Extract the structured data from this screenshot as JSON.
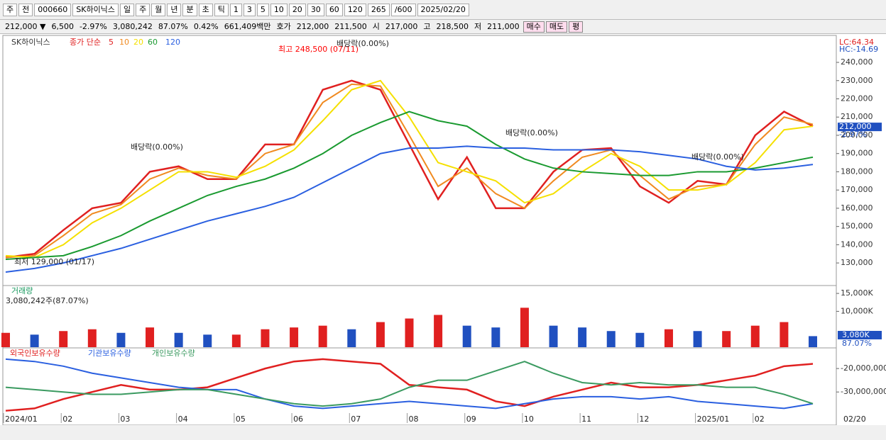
{
  "toolbar": {
    "items": [
      "주",
      "전",
      "000660",
      "SK하이닉스",
      "일",
      "주",
      "월",
      "년",
      "분",
      "초",
      "틱",
      "1",
      "3",
      "5",
      "10",
      "20",
      "30",
      "60",
      "120",
      "265",
      "/600",
      "2025/02/20"
    ]
  },
  "infobar": {
    "items": [
      "212,000 ▼",
      "6,500",
      "-2.97%",
      "3,080,242",
      "87.07%",
      "0.42%",
      "661,409백만",
      "호가",
      "212,000",
      "211,500",
      "시",
      "217,000",
      "고",
      "218,500",
      "저",
      "211,000"
    ],
    "buttons": [
      "매수",
      "매도",
      "평"
    ]
  },
  "chart_data": [
    {
      "type": "line",
      "name": "SK하이닉스",
      "subtitle": "종가 단순",
      "categories": [
        "2024/01",
        null,
        "02",
        null,
        "03",
        null,
        "04",
        null,
        "05",
        null,
        "06",
        null,
        "07",
        null,
        "08",
        null,
        "09",
        null,
        "10",
        null,
        "11",
        null,
        "12",
        null,
        "2025/01",
        null,
        "02",
        null,
        null
      ],
      "series": [
        {
          "name": "5",
          "color": "#e02020",
          "values": [
            133000,
            135000,
            148000,
            160000,
            163000,
            180000,
            183000,
            176000,
            176000,
            195000,
            195000,
            225000,
            230000,
            225000,
            195000,
            165000,
            188000,
            160000,
            160000,
            180000,
            192000,
            193000,
            172000,
            163000,
            175000,
            173000,
            200000,
            213000,
            205000
          ]
        },
        {
          "name": "10",
          "color": "#f08a20",
          "values": [
            133000,
            134000,
            145000,
            157000,
            162000,
            176000,
            182000,
            178000,
            176000,
            190000,
            195000,
            218000,
            228000,
            227000,
            200000,
            172000,
            182000,
            168000,
            160000,
            175000,
            188000,
            192000,
            178000,
            165000,
            172000,
            173000,
            195000,
            210000,
            206000
          ]
        },
        {
          "name": "20",
          "color": "#f5e000",
          "values": [
            134000,
            133000,
            140000,
            152000,
            160000,
            170000,
            180000,
            180000,
            177000,
            183000,
            192000,
            208000,
            225000,
            230000,
            210000,
            185000,
            180000,
            175000,
            163000,
            168000,
            180000,
            190000,
            183000,
            170000,
            170000,
            173000,
            185000,
            203000,
            205000
          ]
        },
        {
          "name": "60",
          "color": "#1a9a30",
          "values": [
            132000,
            133000,
            134000,
            139000,
            145000,
            153000,
            160000,
            167000,
            172000,
            176000,
            182000,
            190000,
            200000,
            207000,
            213000,
            208000,
            205000,
            195000,
            187000,
            182000,
            180000,
            179000,
            178000,
            178000,
            180000,
            180000,
            182000,
            185000,
            188000
          ]
        },
        {
          "name": "120",
          "color": "#2a5fe0",
          "values": [
            125000,
            127000,
            130000,
            134000,
            138000,
            143000,
            148000,
            153000,
            157000,
            161000,
            166000,
            174000,
            182000,
            190000,
            193000,
            193000,
            194000,
            193000,
            193000,
            192000,
            192000,
            192000,
            191000,
            189000,
            187000,
            183000,
            181000,
            182000,
            184000
          ]
        }
      ],
      "ylim": [
        118000,
        254000
      ],
      "yticks": [
        {
          "value": 130000,
          "label": "130,000"
        },
        {
          "value": 140000,
          "label": "140,000"
        },
        {
          "value": 150000,
          "label": "150,000"
        },
        {
          "value": 160000,
          "label": "160,000"
        },
        {
          "value": 170000,
          "label": "170,000"
        },
        {
          "value": 180000,
          "label": "180,000"
        },
        {
          "value": 190000,
          "label": "190,000"
        },
        {
          "value": 200000,
          "label": "200,000"
        },
        {
          "value": 210000,
          "label": "210,000"
        },
        {
          "value": 220000,
          "label": "220,000"
        },
        {
          "value": 230000,
          "label": "230,000"
        },
        {
          "value": 240000,
          "label": "240,000"
        }
      ],
      "annotations": [
        "최고 248,500 (07/11)",
        "최저 129,000 (01/17)",
        "배당락(0.00%)",
        "배당락(0.00%)",
        "배당락(0.00%)",
        "배당락(0.00%)"
      ],
      "right_labels": [
        "LC:64.34",
        "HC:-14.69",
        "212,000",
        "-2.97%"
      ]
    },
    {
      "type": "bar",
      "title": "거래량",
      "subtitle": "3,080,242주(87.07%)",
      "up_color": "#e02020",
      "down_color": "#2050c0",
      "values": [
        4000,
        3500,
        4500,
        5000,
        4000,
        5500,
        4000,
        3500,
        3500,
        5000,
        5500,
        6000,
        5000,
        7000,
        8000,
        9000,
        6000,
        5500,
        11000,
        6000,
        5500,
        4500,
        4000,
        5000,
        4500,
        4500,
        6000,
        7000,
        3080
      ],
      "ylim": [
        0,
        17000
      ],
      "yticks": [
        {
          "value": 10000,
          "label": "10,000K"
        },
        {
          "value": 15000,
          "label": "15,000K"
        }
      ],
      "right_labels": [
        "3,080K",
        "87.07%"
      ]
    },
    {
      "type": "line",
      "series": [
        {
          "name": "외국인보유수량",
          "color": "#e02020",
          "values": [
            -38000000,
            -37000000,
            -33000000,
            -30000000,
            -27000000,
            -29000000,
            -29000000,
            -28000000,
            -24000000,
            -20000000,
            -17000000,
            -16000000,
            -17000000,
            -18000000,
            -27000000,
            -28000000,
            -29000000,
            -34000000,
            -36000000,
            -32000000,
            -29000000,
            -26000000,
            -28000000,
            -28000000,
            -27000000,
            -25000000,
            -23000000,
            -19000000,
            -18000000
          ]
        },
        {
          "name": "기관보유수량",
          "color": "#2a5fe0",
          "values": [
            -16000000,
            -17000000,
            -19000000,
            -22000000,
            -24000000,
            -26000000,
            -28000000,
            -29000000,
            -29000000,
            -33000000,
            -36000000,
            -37000000,
            -36000000,
            -35000000,
            -34000000,
            -35000000,
            -36000000,
            -37000000,
            -35000000,
            -33000000,
            -32000000,
            -32000000,
            -33000000,
            -32000000,
            -34000000,
            -35000000,
            -36000000,
            -37000000,
            -35000000
          ]
        },
        {
          "name": "개인보유수량",
          "color": "#3a9a60",
          "values": [
            -28000000,
            -29000000,
            -30000000,
            -31000000,
            -31000000,
            -30000000,
            -29000000,
            -29000000,
            -31000000,
            -33000000,
            -35000000,
            -36000000,
            -35000000,
            -33000000,
            -28000000,
            -25000000,
            -25000000,
            -21000000,
            -17000000,
            -22000000,
            -26000000,
            -27000000,
            -26000000,
            -27000000,
            -27000000,
            -28000000,
            -28000000,
            -31000000,
            -35000000
          ]
        }
      ],
      "ylim": [
        -39000000,
        -11500000
      ],
      "yticks": [
        {
          "value": -20000000,
          "label": "-20,000,000"
        },
        {
          "value": -30000000,
          "label": "-30,000,000"
        }
      ],
      "x_end_label": "02/20"
    }
  ]
}
